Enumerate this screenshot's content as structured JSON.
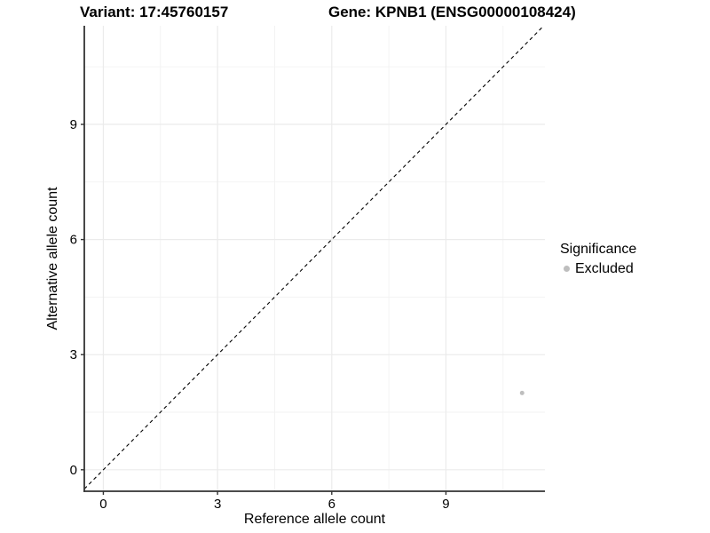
{
  "header": {
    "variant_title": "Variant: 17:45760157",
    "gene_title": "Gene: KPNB1 (ENSG00000108424)"
  },
  "chart_data": {
    "type": "scatter",
    "title_left": "Variant: 17:45760157",
    "title_right": "Gene: KPNB1 (ENSG00000108424)",
    "xlabel": "Reference allele count",
    "ylabel": "Alternative allele count",
    "xlim": [
      -0.5,
      11.6
    ],
    "ylim": [
      -0.56,
      11.57
    ],
    "xticks": [
      0,
      3,
      6,
      9
    ],
    "yticks": [
      0,
      3,
      6,
      9
    ],
    "xticks_minor": [
      1.5,
      4.5,
      7.5,
      10.5
    ],
    "yticks_minor": [
      1.5,
      4.5,
      7.5,
      10.5
    ],
    "grid": "major+minor",
    "identity_line": {
      "equation": "y = x",
      "style": "dashed",
      "color": "#000000"
    },
    "series": [
      {
        "name": "Excluded",
        "color": "#bebebe",
        "marker": "circle",
        "points": [
          {
            "x": 11,
            "y": 2
          }
        ]
      }
    ],
    "legend": {
      "title": "Significance",
      "position": "right",
      "items": [
        {
          "label": "Excluded",
          "color": "#bebebe"
        }
      ]
    }
  },
  "colors": {
    "background": "#ffffff",
    "grid_major": "#ebebeb",
    "grid_minor": "#f2f2f2",
    "axis_line": "#333333",
    "text": "#000000",
    "point": "#bebebe"
  }
}
